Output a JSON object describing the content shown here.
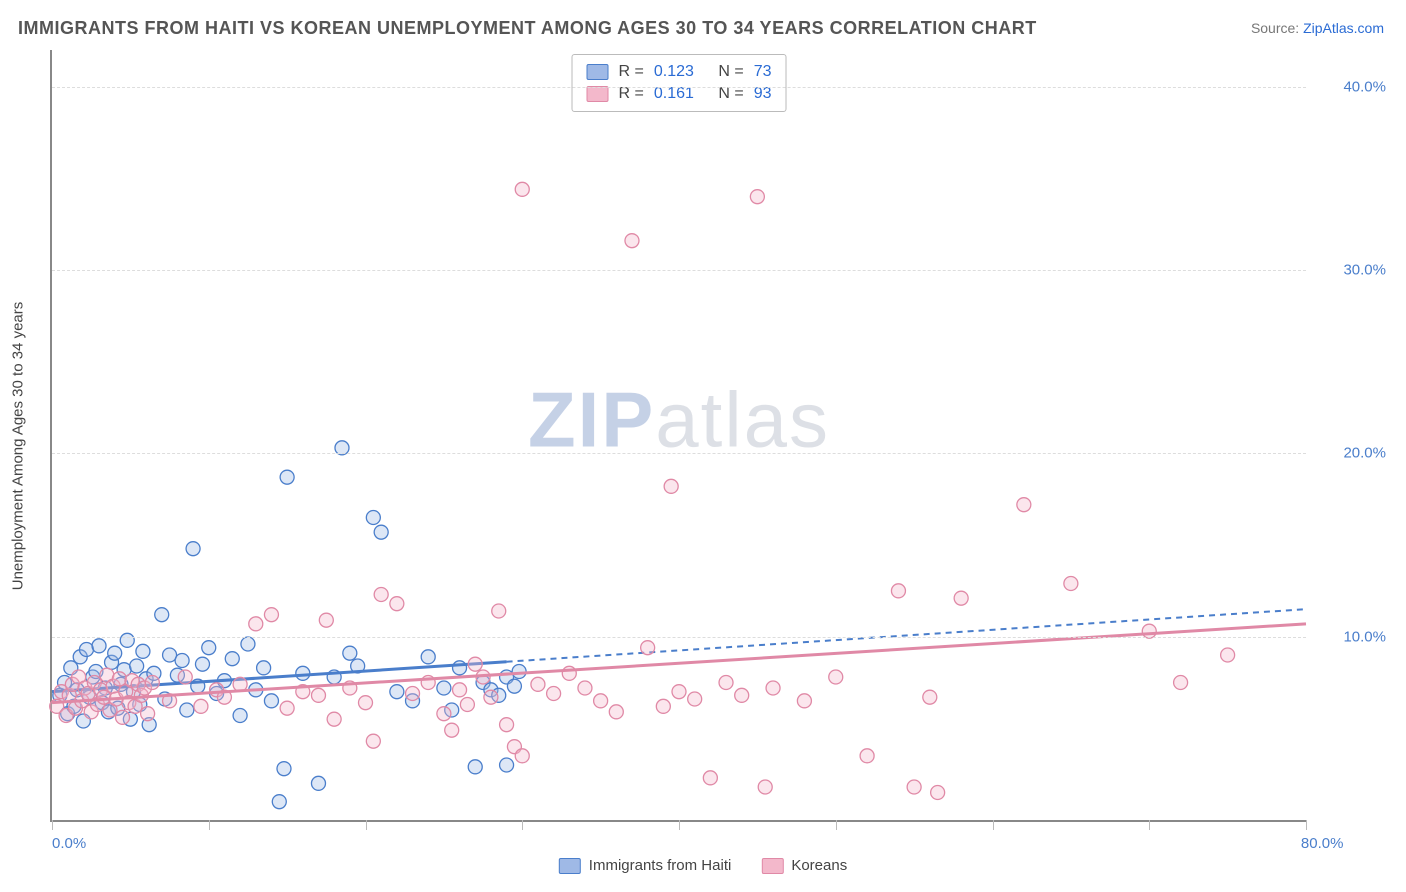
{
  "title": "IMMIGRANTS FROM HAITI VS KOREAN UNEMPLOYMENT AMONG AGES 30 TO 34 YEARS CORRELATION CHART",
  "source_label": "Source:",
  "source_name": "ZipAtlas.com",
  "y_axis_title": "Unemployment Among Ages 30 to 34 years",
  "watermark_zip": "ZIP",
  "watermark_atlas": "atlas",
  "chart": {
    "type": "scatter",
    "xlim": [
      0,
      80
    ],
    "ylim": [
      0,
      42
    ],
    "x_ticks": [
      0,
      10,
      20,
      30,
      40,
      50,
      60,
      70,
      80
    ],
    "x_tick_labels_shown": [
      0,
      80
    ],
    "x_tick_label_format": "{v}.0%",
    "y_ticks": [
      10,
      20,
      30,
      40
    ],
    "y_tick_label_format": "{v}.0%",
    "background_color": "#ffffff",
    "grid_color": "#dddddd",
    "axis_color": "#888888",
    "tick_label_color": "#4a7ecb",
    "marker_radius": 7,
    "marker_fill_opacity": 0.35,
    "marker_stroke_width": 1.3,
    "series": [
      {
        "id": "haiti",
        "label": "Immigrants from Haiti",
        "color_stroke": "#4a7ecb",
        "color_fill": "#9fb9e6",
        "R": "0.123",
        "N": "73",
        "trend": {
          "y_at_x0": 7.0,
          "y_at_xmax": 11.5,
          "solid_until_x": 29
        },
        "points": [
          [
            0.5,
            6.8
          ],
          [
            0.8,
            7.5
          ],
          [
            1,
            5.8
          ],
          [
            1.2,
            8.3
          ],
          [
            1.4,
            6.2
          ],
          [
            1.6,
            7.1
          ],
          [
            1.8,
            8.9
          ],
          [
            2,
            5.4
          ],
          [
            2.2,
            9.3
          ],
          [
            2.4,
            6.7
          ],
          [
            2.6,
            7.8
          ],
          [
            2.8,
            8.1
          ],
          [
            3,
            9.5
          ],
          [
            3.2,
            6.4
          ],
          [
            3.4,
            7.2
          ],
          [
            3.6,
            5.9
          ],
          [
            3.8,
            8.6
          ],
          [
            4,
            9.1
          ],
          [
            4.2,
            6.1
          ],
          [
            4.4,
            7.4
          ],
          [
            4.6,
            8.2
          ],
          [
            4.8,
            9.8
          ],
          [
            5,
            5.5
          ],
          [
            5.2,
            7.0
          ],
          [
            5.4,
            8.4
          ],
          [
            5.6,
            6.3
          ],
          [
            5.8,
            9.2
          ],
          [
            6,
            7.7
          ],
          [
            6.2,
            5.2
          ],
          [
            6.5,
            8.0
          ],
          [
            7,
            11.2
          ],
          [
            7.2,
            6.6
          ],
          [
            7.5,
            9.0
          ],
          [
            8,
            7.9
          ],
          [
            8.3,
            8.7
          ],
          [
            8.6,
            6.0
          ],
          [
            9,
            14.8
          ],
          [
            9.3,
            7.3
          ],
          [
            9.6,
            8.5
          ],
          [
            10,
            9.4
          ],
          [
            10.5,
            6.9
          ],
          [
            11,
            7.6
          ],
          [
            11.5,
            8.8
          ],
          [
            12,
            5.7
          ],
          [
            12.5,
            9.6
          ],
          [
            13,
            7.1
          ],
          [
            13.5,
            8.3
          ],
          [
            14,
            6.5
          ],
          [
            14.5,
            1.0
          ],
          [
            14.8,
            2.8
          ],
          [
            15,
            18.7
          ],
          [
            16,
            8.0
          ],
          [
            17,
            2.0
          ],
          [
            18,
            7.8
          ],
          [
            18.5,
            20.3
          ],
          [
            19,
            9.1
          ],
          [
            19.5,
            8.4
          ],
          [
            20.5,
            16.5
          ],
          [
            21,
            15.7
          ],
          [
            22,
            7.0
          ],
          [
            23,
            6.5
          ],
          [
            24,
            8.9
          ],
          [
            25,
            7.2
          ],
          [
            25.5,
            6.0
          ],
          [
            26,
            8.3
          ],
          [
            27,
            2.9
          ],
          [
            27.5,
            7.5
          ],
          [
            28,
            7.1
          ],
          [
            28.5,
            6.8
          ],
          [
            29,
            3.0
          ],
          [
            29,
            7.8
          ],
          [
            29.5,
            7.3
          ],
          [
            29.8,
            8.1
          ]
        ]
      },
      {
        "id": "koreans",
        "label": "Koreans",
        "color_stroke": "#e089a6",
        "color_fill": "#f3b8cb",
        "R": "0.161",
        "N": "93",
        "trend": {
          "y_at_x0": 6.4,
          "y_at_xmax": 10.7,
          "solid_until_x": 80
        },
        "points": [
          [
            0.3,
            6.2
          ],
          [
            0.6,
            7.0
          ],
          [
            0.9,
            5.7
          ],
          [
            1.1,
            6.8
          ],
          [
            1.3,
            7.4
          ],
          [
            1.5,
            6.1
          ],
          [
            1.7,
            7.8
          ],
          [
            1.9,
            6.5
          ],
          [
            2.1,
            7.2
          ],
          [
            2.3,
            6.9
          ],
          [
            2.5,
            5.9
          ],
          [
            2.7,
            7.5
          ],
          [
            2.9,
            6.3
          ],
          [
            3.1,
            7.1
          ],
          [
            3.3,
            6.7
          ],
          [
            3.5,
            7.9
          ],
          [
            3.7,
            6.0
          ],
          [
            3.9,
            7.3
          ],
          [
            4.1,
            6.6
          ],
          [
            4.3,
            7.7
          ],
          [
            4.5,
            5.6
          ],
          [
            4.7,
            7.0
          ],
          [
            4.9,
            6.4
          ],
          [
            5.1,
            7.6
          ],
          [
            5.3,
            6.2
          ],
          [
            5.5,
            7.4
          ],
          [
            5.7,
            6.8
          ],
          [
            5.9,
            7.2
          ],
          [
            6.1,
            5.8
          ],
          [
            6.4,
            7.5
          ],
          [
            7.5,
            6.5
          ],
          [
            8.5,
            7.8
          ],
          [
            9.5,
            6.2
          ],
          [
            10.5,
            7.1
          ],
          [
            11,
            6.7
          ],
          [
            12,
            7.4
          ],
          [
            13,
            10.7
          ],
          [
            14,
            11.2
          ],
          [
            15,
            6.1
          ],
          [
            16,
            7.0
          ],
          [
            17,
            6.8
          ],
          [
            17.5,
            10.9
          ],
          [
            18,
            5.5
          ],
          [
            19,
            7.2
          ],
          [
            20,
            6.4
          ],
          [
            20.5,
            4.3
          ],
          [
            21,
            12.3
          ],
          [
            22,
            11.8
          ],
          [
            23,
            6.9
          ],
          [
            24,
            7.5
          ],
          [
            25,
            5.8
          ],
          [
            25.5,
            4.9
          ],
          [
            26,
            7.1
          ],
          [
            26.5,
            6.3
          ],
          [
            27,
            8.5
          ],
          [
            27.5,
            7.8
          ],
          [
            28,
            6.7
          ],
          [
            28.5,
            11.4
          ],
          [
            29,
            5.2
          ],
          [
            29.5,
            4.0
          ],
          [
            30,
            3.5
          ],
          [
            30,
            34.4
          ],
          [
            31,
            7.4
          ],
          [
            32,
            6.9
          ],
          [
            33,
            8.0
          ],
          [
            34,
            7.2
          ],
          [
            35,
            6.5
          ],
          [
            36,
            5.9
          ],
          [
            37,
            31.6
          ],
          [
            38,
            9.4
          ],
          [
            39,
            6.2
          ],
          [
            39.5,
            18.2
          ],
          [
            40,
            7.0
          ],
          [
            41,
            6.6
          ],
          [
            42,
            2.3
          ],
          [
            43,
            7.5
          ],
          [
            44,
            6.8
          ],
          [
            45,
            34.0
          ],
          [
            45.5,
            1.8
          ],
          [
            46,
            7.2
          ],
          [
            48,
            6.5
          ],
          [
            50,
            7.8
          ],
          [
            52,
            3.5
          ],
          [
            54,
            12.5
          ],
          [
            55,
            1.8
          ],
          [
            56,
            6.7
          ],
          [
            56.5,
            1.5
          ],
          [
            58,
            12.1
          ],
          [
            62,
            17.2
          ],
          [
            65,
            12.9
          ],
          [
            70,
            10.3
          ],
          [
            72,
            7.5
          ],
          [
            75,
            9.0
          ]
        ]
      }
    ]
  },
  "stats_legend": {
    "R_label": "R =",
    "N_label": "N ="
  }
}
